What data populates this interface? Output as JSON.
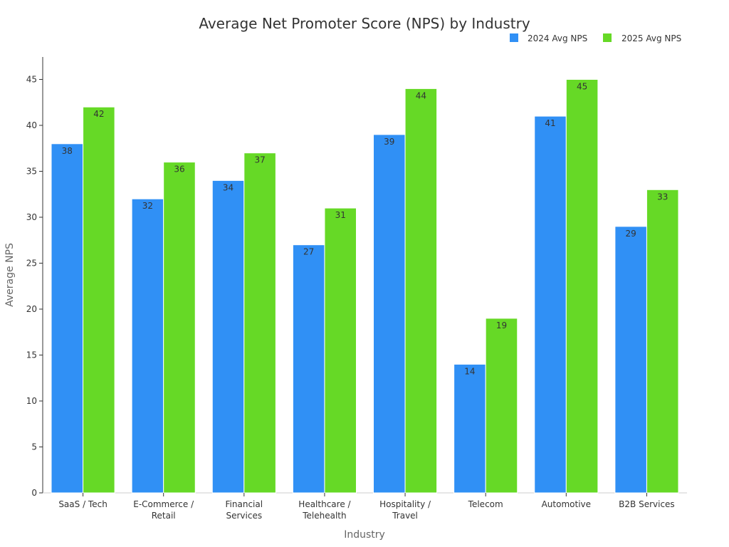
{
  "chart_data": {
    "type": "bar",
    "title": "Average Net Promoter Score (NPS) by Industry",
    "xlabel": "Industry",
    "ylabel": "Average NPS",
    "ylim": [
      0,
      47
    ],
    "yticks": [
      0,
      5,
      10,
      15,
      20,
      25,
      30,
      35,
      40,
      45
    ],
    "grid": false,
    "legend_position": "top-right",
    "categories": [
      [
        "SaaS / Tech"
      ],
      [
        "E-Commerce /",
        "Retail"
      ],
      [
        "Financial",
        "Services"
      ],
      [
        "Healthcare /",
        "Telehealth"
      ],
      [
        "Hospitality /",
        "Travel"
      ],
      [
        "Telecom"
      ],
      [
        "Automotive"
      ],
      [
        "B2B Services"
      ]
    ],
    "series": [
      {
        "name": "2024 Avg NPS",
        "color": "#3090F5",
        "values": [
          38,
          32,
          34,
          27,
          39,
          14,
          41,
          29
        ]
      },
      {
        "name": "2025 Avg NPS",
        "color": "#66D926",
        "values": [
          42,
          36,
          37,
          31,
          44,
          19,
          45,
          33
        ]
      }
    ]
  }
}
